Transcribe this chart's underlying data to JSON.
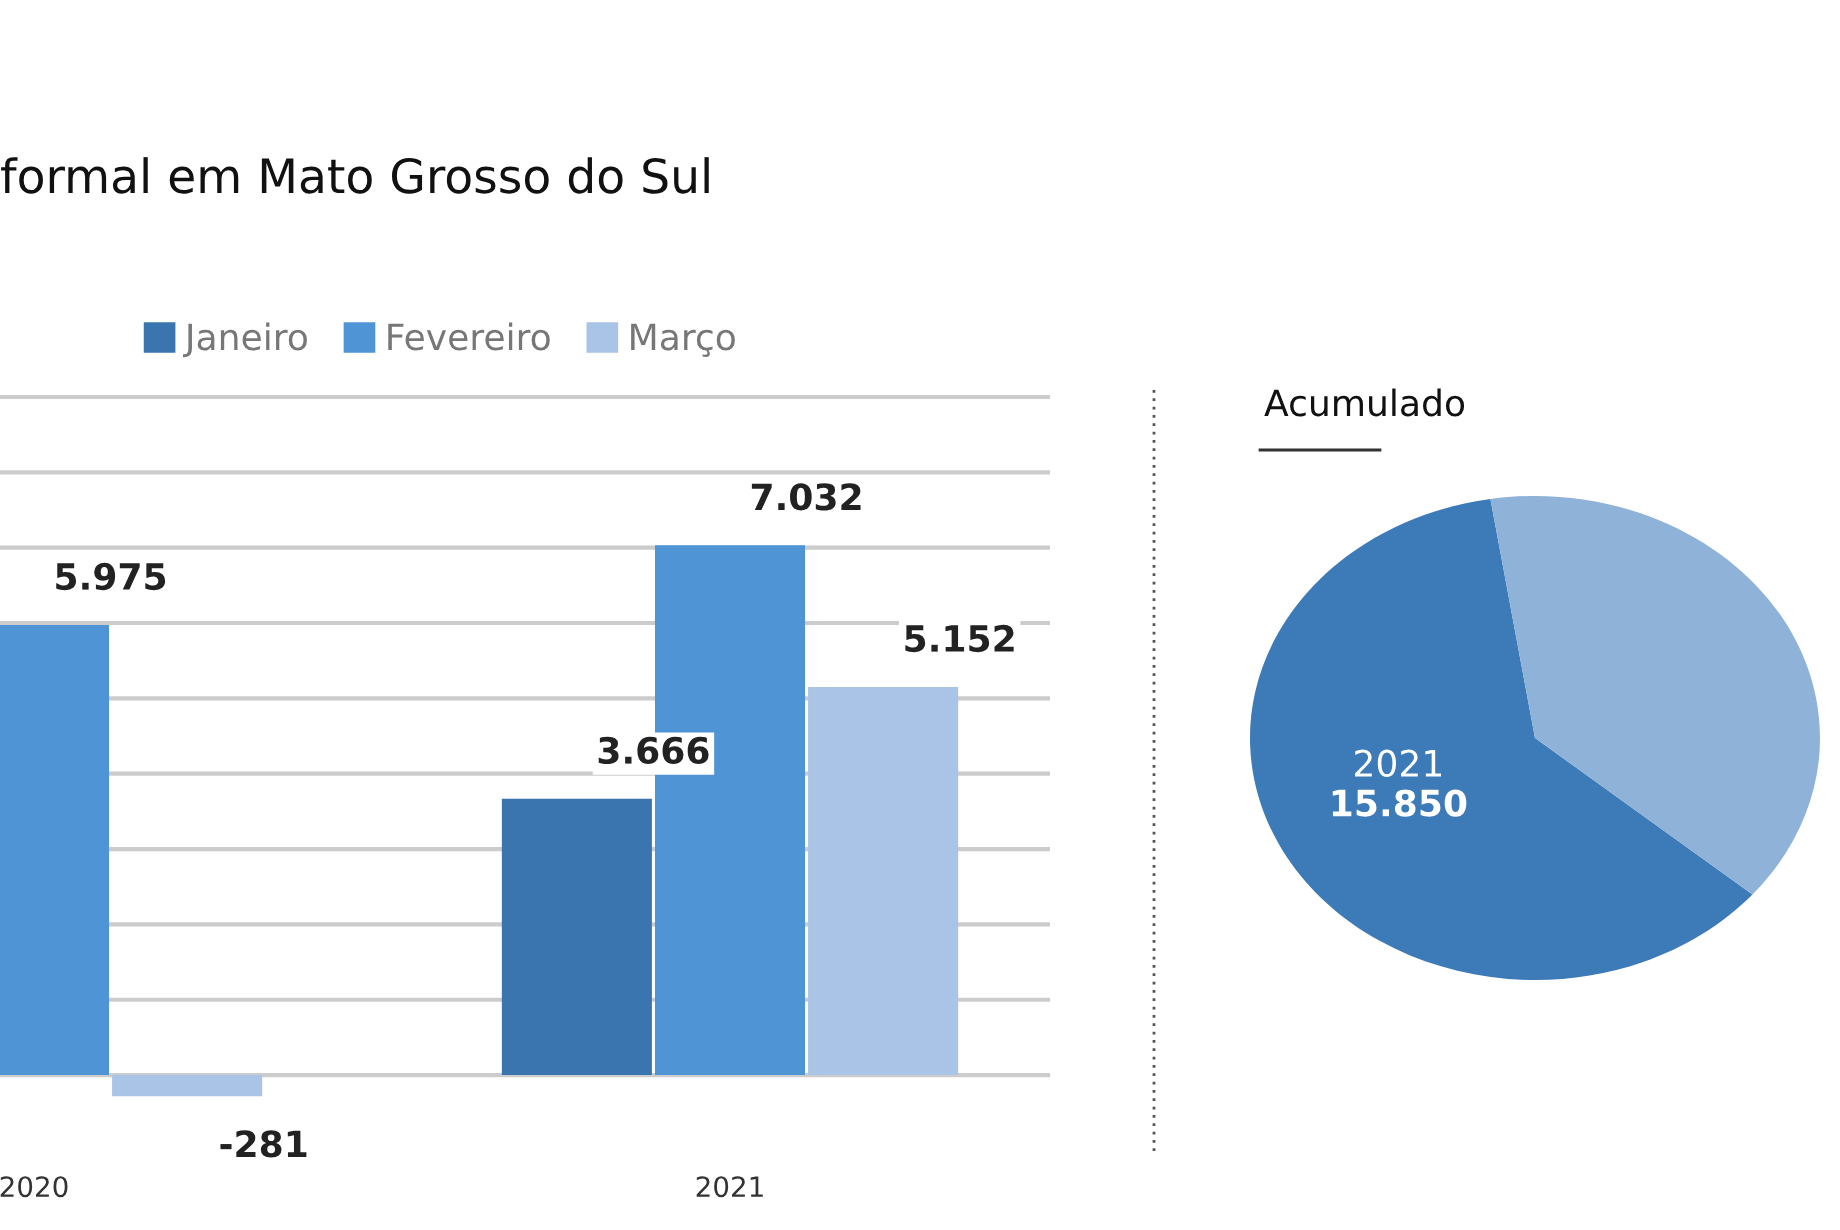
{
  "chart_data": [
    {
      "type": "bar",
      "title": "formal em Mato Grosso do Sul",
      "categories": [
        "2020",
        "2021"
      ],
      "series": [
        {
          "name": "Janeiro",
          "color": "#3b75b0",
          "values": [
            null,
            3666
          ],
          "value_labels": [
            null,
            "3.666"
          ]
        },
        {
          "name": "Fevereiro",
          "color": "#4f95d5",
          "values": [
            5975,
            7032
          ],
          "value_labels": [
            "5.975",
            "7.032"
          ]
        },
        {
          "name": "Março",
          "color": "#a9c4e6",
          "values": [
            -281,
            5152
          ],
          "value_labels": [
            "-281",
            "5.152"
          ]
        }
      ],
      "yticks": [
        {
          "value": 0,
          "label": null
        },
        {
          "value": 1000,
          "label": null
        },
        {
          "value": 2000,
          "label": null
        },
        {
          "value": 3000,
          "label": null
        },
        {
          "value": 4000,
          "label": null
        },
        {
          "value": 5000,
          "label": null
        },
        {
          "value": 6000,
          "label": null
        },
        {
          "value": 7000,
          "label": null
        },
        {
          "value": 8000,
          "label": null
        },
        {
          "value": 9000,
          "label": null
        }
      ],
      "grid": "y",
      "legend": "top",
      "tick_labels": "x"
    },
    {
      "type": "pie",
      "title": "Acumulado",
      "categories": [
        "2021",
        null
      ],
      "values": [
        15850,
        10000
      ],
      "colors": [
        "#3d7ab8",
        "#8fb2d9"
      ],
      "value_labels": [
        "15.850",
        null
      ]
    }
  ]
}
